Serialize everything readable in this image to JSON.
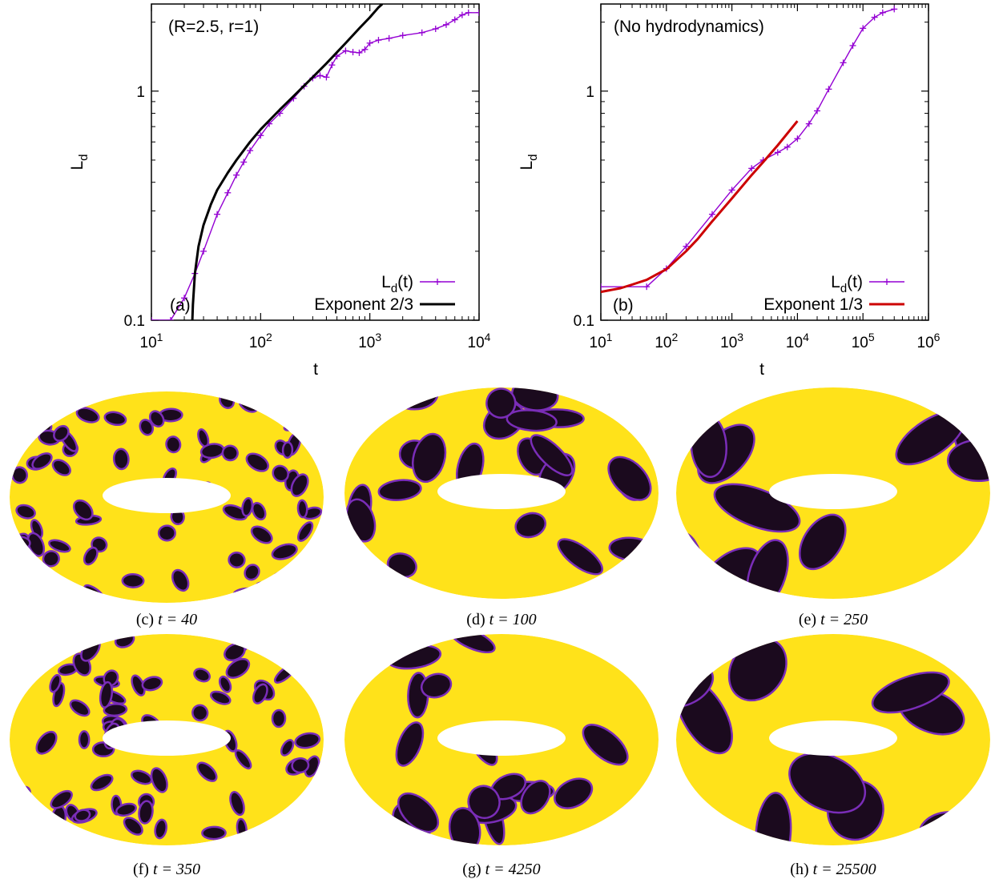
{
  "chart_data": [
    {
      "type": "line",
      "xscale": "log",
      "yscale": "log",
      "xlim": [
        10,
        10000
      ],
      "ylim": [
        0.1,
        2.4
      ],
      "xlabel": "t",
      "ylabel": "L_d",
      "x_ticks": [
        "10^1",
        "10^2",
        "10^3",
        "10^4"
      ],
      "y_ticks": [
        "0.1",
        "1"
      ],
      "annotation": "(R=2.5, r=1)",
      "panel_label": "(a)",
      "legend_position": "bottom-right",
      "grid": false,
      "series": [
        {
          "name": "L_d(t)",
          "color": "#9400d3",
          "marker": "+",
          "x": [
            10,
            15,
            20,
            25,
            30,
            40,
            50,
            60,
            70,
            80,
            100,
            120,
            150,
            200,
            250,
            300,
            350,
            400,
            450,
            500,
            600,
            700,
            800,
            900,
            1000,
            1200,
            1500,
            2000,
            3000,
            4000,
            5000,
            6000,
            7000,
            8000,
            10000
          ],
          "y": [
            0.1,
            0.1,
            0.125,
            0.16,
            0.2,
            0.29,
            0.36,
            0.43,
            0.49,
            0.55,
            0.64,
            0.72,
            0.8,
            0.93,
            1.05,
            1.14,
            1.17,
            1.15,
            1.3,
            1.42,
            1.5,
            1.48,
            1.47,
            1.52,
            1.62,
            1.67,
            1.7,
            1.75,
            1.8,
            1.87,
            1.95,
            2.05,
            2.15,
            2.2,
            2.2
          ]
        },
        {
          "name": "Exponent 2/3",
          "color": "#000000",
          "x": [
            23.7,
            24,
            25,
            27,
            30,
            35,
            40,
            50,
            60,
            80,
            100,
            150,
            200,
            300,
            400,
            600,
            800,
            1000,
            1200,
            1300
          ],
          "y": [
            0.1,
            0.117,
            0.16,
            0.21,
            0.26,
            0.32,
            0.37,
            0.44,
            0.5,
            0.6,
            0.68,
            0.83,
            0.95,
            1.15,
            1.32,
            1.62,
            1.88,
            2.1,
            2.32,
            2.4
          ]
        }
      ]
    },
    {
      "type": "line",
      "xscale": "log",
      "yscale": "log",
      "xlim": [
        10,
        1000000
      ],
      "ylim": [
        0.1,
        2.4
      ],
      "xlabel": "t",
      "ylabel": "L_d",
      "x_ticks": [
        "10^1",
        "10^2",
        "10^3",
        "10^4",
        "10^5",
        "10^6"
      ],
      "y_ticks": [
        "0.1",
        "1"
      ],
      "annotation": "(No hydrodynamics)",
      "panel_label": "(b)",
      "legend_position": "bottom-right",
      "grid": false,
      "series": [
        {
          "name": "L_d(t)",
          "color": "#9400d3",
          "marker": "+",
          "x": [
            10,
            50,
            100,
            200,
            500,
            1000,
            2000,
            3000,
            5000,
            7000,
            10000,
            15000,
            20000,
            30000,
            50000,
            70000,
            100000,
            150000,
            200000,
            300000
          ],
          "y": [
            0.14,
            0.14,
            0.168,
            0.21,
            0.29,
            0.37,
            0.46,
            0.5,
            0.54,
            0.57,
            0.62,
            0.72,
            0.82,
            1.02,
            1.33,
            1.58,
            1.88,
            2.1,
            2.2,
            2.28
          ]
        },
        {
          "name": "Exponent 1/3",
          "color": "#cc0000",
          "x": [
            10,
            20,
            30,
            50,
            70,
            100,
            200,
            300,
            500,
            1000,
            2000,
            3000,
            5000,
            10000
          ],
          "y": [
            0.133,
            0.138,
            0.143,
            0.15,
            0.158,
            0.167,
            0.2,
            0.226,
            0.27,
            0.34,
            0.43,
            0.49,
            0.58,
            0.74
          ]
        }
      ]
    }
  ],
  "tori": [
    {
      "caption_label": "(c)",
      "caption_value": "t = 40",
      "coarseness": "very-fine"
    },
    {
      "caption_label": "(d)",
      "caption_value": "t = 100",
      "coarseness": "medium"
    },
    {
      "caption_label": "(e)",
      "caption_value": "t = 250",
      "coarseness": "coarse"
    },
    {
      "caption_label": "(f)",
      "caption_value": "t = 350",
      "coarseness": "very-fine"
    },
    {
      "caption_label": "(g)",
      "caption_value": "t = 4250",
      "coarseness": "medium"
    },
    {
      "caption_label": "(h)",
      "caption_value": "t = 25500",
      "coarseness": "coarse"
    }
  ],
  "colors": {
    "phase_light": "#ffe21a",
    "phase_dark": "#1b0a1e",
    "interface": "#7a2db8"
  }
}
